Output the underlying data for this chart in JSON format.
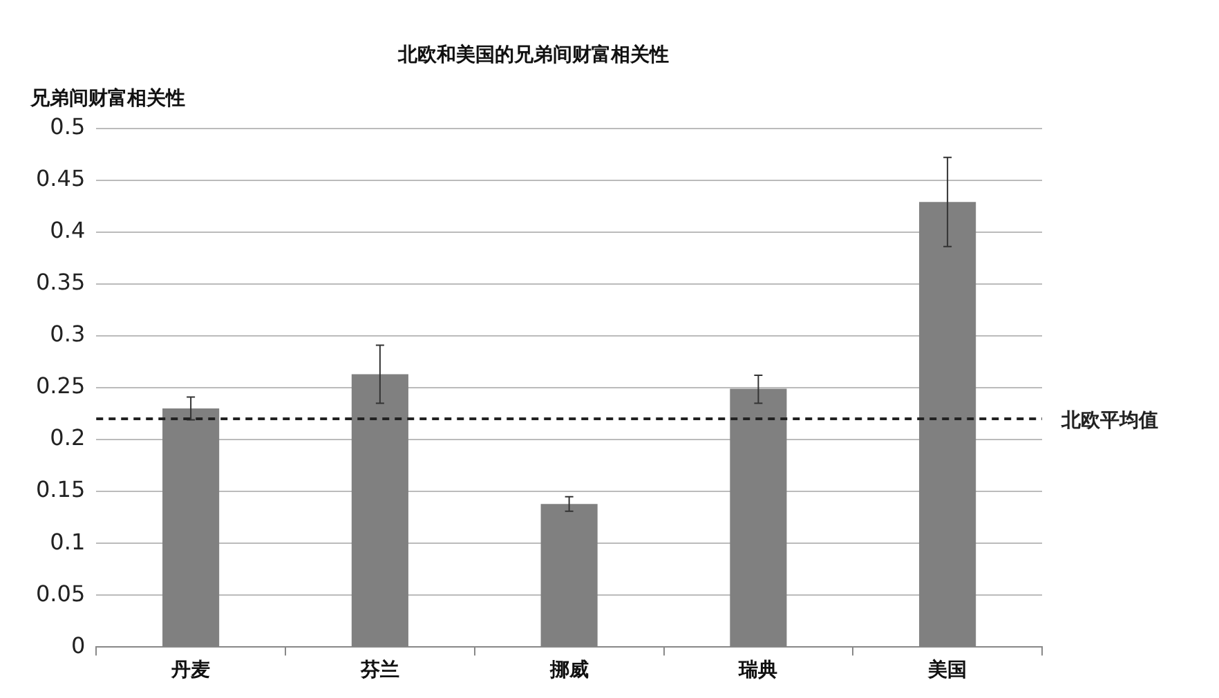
{
  "chart_data": {
    "type": "bar",
    "title": "北欧和美国的兄弟间财富相关性",
    "ylabel": "兄弟间财富相关性",
    "categories": [
      "丹麦",
      "芬兰",
      "挪威",
      "瑞典",
      "美国"
    ],
    "values": [
      0.23,
      0.263,
      0.138,
      0.249,
      0.429
    ],
    "color": "#808080",
    "errors": [
      [
        0.219,
        0.241
      ],
      [
        0.235,
        0.291
      ],
      [
        0.131,
        0.145
      ],
      [
        0.235,
        0.262
      ],
      [
        0.386,
        0.472
      ]
    ],
    "ylim": [
      0,
      0.5
    ],
    "yticks": [
      0,
      0.05,
      0.1,
      0.15,
      0.2,
      0.25,
      0.3,
      0.35,
      0.4,
      0.45,
      0.5
    ],
    "grid": "y",
    "ref_lines": [
      {
        "axis": "y",
        "value": 0.22,
        "label": "北欧平均值",
        "color": "#222222",
        "line_style": "dashed"
      }
    ],
    "legend": false
  }
}
